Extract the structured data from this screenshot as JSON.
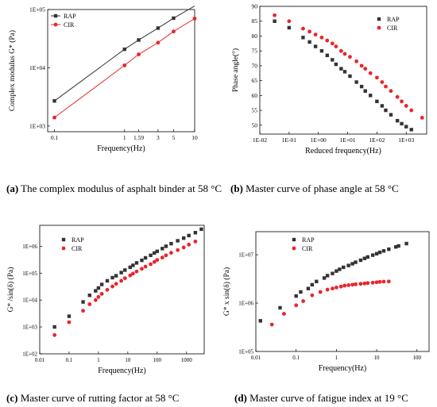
{
  "colors": {
    "rap": "#333333",
    "cir": "#e8262b"
  },
  "panels": [
    {
      "id": "a",
      "caption_letter": "(a)",
      "caption_text": " The complex modulus of asphalt binder at 58 °C",
      "chart_data": {
        "type": "line",
        "xscale": "log",
        "yscale": "log",
        "xlim": [
          0.08,
          10
        ],
        "ylim": [
          800,
          100000
        ],
        "xticks": [
          0.1,
          1,
          1.59,
          3,
          5,
          10
        ],
        "xtick_labels": [
          "0.1",
          "1",
          "1.59",
          "3",
          "5",
          "10"
        ],
        "yticks": [
          1000,
          10000,
          100000
        ],
        "ytick_labels": [
          "1E+03",
          "1E+04",
          "1E+05"
        ],
        "xlabel": "Frequency(Hz)",
        "ylabel": "Complex modulus G* (Pa)",
        "legend": "top-left",
        "series": [
          {
            "name": "RAP",
            "marker": "square",
            "line": true,
            "x": [
              0.1,
              1,
              1.59,
              3,
              5,
              10
            ],
            "y": [
              2700,
              20800,
              30000,
              48000,
              71000,
              115000
            ]
          },
          {
            "name": "CIR",
            "marker": "circle",
            "line": true,
            "x": [
              0.1,
              1,
              1.59,
              3,
              5,
              10
            ],
            "y": [
              1400,
              11000,
              17000,
              27000,
              42000,
              70000
            ]
          }
        ]
      }
    },
    {
      "id": "b",
      "caption_letter": "(b)",
      "caption_text": " Master curve of phase angle at 58 °C",
      "chart_data": {
        "type": "scatter",
        "xscale": "log",
        "yscale": "linear",
        "xlim": [
          0.01,
          5000
        ],
        "ylim": [
          47,
          90
        ],
        "xticks": [
          0.01,
          0.1,
          1,
          10,
          100,
          1000
        ],
        "xtick_labels": [
          "1E-02",
          "1E-01",
          "1E+00",
          "1E+01",
          "1E+02",
          "1E+03"
        ],
        "yticks": [
          50,
          55,
          60,
          65,
          70,
          75,
          80,
          85,
          90
        ],
        "ytick_labels": [
          "50",
          "55",
          "60",
          "65",
          "70",
          "75",
          "80",
          "85",
          "90"
        ],
        "xlabel": "Reduced frequency(Hz)",
        "ylabel": "Phase angle(°)",
        "legend": "top-right",
        "series": [
          {
            "name": "RAP",
            "marker": "square",
            "x": [
              0.032,
              0.1,
              0.3,
              0.5,
              0.8,
              1.3,
              2,
              3,
              4,
              6,
              8,
              12,
              20,
              30,
              40,
              60,
              100,
              150,
              200,
              300,
              500,
              700,
              1000,
              1500,
              3500
            ],
            "y": [
              85,
              82.8,
              79.5,
              78,
              76.5,
              75,
              73.5,
              72,
              70.5,
              69,
              68,
              66.5,
              64.5,
              63,
              61.5,
              60,
              58,
              56.5,
              55,
              53.5,
              51.5,
              50.5,
              49.5,
              48.5,
              46.5
            ]
          },
          {
            "name": "CIR",
            "marker": "circle",
            "x": [
              0.032,
              0.1,
              0.3,
              0.5,
              0.8,
              1.3,
              2,
              3,
              4,
              6,
              8,
              12,
              20,
              30,
              40,
              60,
              100,
              150,
              200,
              300,
              500,
              700,
              1000,
              1500,
              3500
            ],
            "y": [
              87,
              85,
              82.5,
              81.5,
              80.5,
              79.5,
              78.5,
              77.5,
              76.5,
              75,
              74,
              73,
              71.5,
              70,
              69,
              67.5,
              66,
              64.5,
              63,
              61.5,
              59.5,
              58,
              56.5,
              55,
              52.5
            ]
          }
        ]
      }
    },
    {
      "id": "c",
      "caption_letter": "(c)",
      "caption_text": " Master curve of rutting factor at 58 °C",
      "chart_data": {
        "type": "scatter",
        "xscale": "log",
        "yscale": "log",
        "xlim": [
          0.01,
          4000
        ],
        "ylim": [
          100,
          6000000
        ],
        "xticks": [
          0.01,
          0.1,
          1,
          10,
          100,
          1000
        ],
        "xtick_labels": [
          "0.01",
          "0.1",
          "1",
          "10",
          "100",
          "1000"
        ],
        "yticks": [
          100,
          1000,
          10000,
          100000,
          1000000
        ],
        "ytick_labels": [
          "1E+02",
          "1E+03",
          "1E+04",
          "1E+05",
          "1E+06"
        ],
        "xlabel": "Frequency(Hz)",
        "ylabel": "G* /sin(δ) (Pa)",
        "legend": "top-left",
        "series": [
          {
            "name": "RAP",
            "marker": "square",
            "x": [
              0.032,
              0.1,
              0.3,
              0.5,
              0.8,
              1,
              1.3,
              2,
              3,
              4,
              6,
              8,
              12,
              15,
              20,
              30,
              40,
              60,
              80,
              100,
              150,
              200,
              300,
              500,
              800,
              1200,
              2000,
              3200
            ],
            "y": [
              1000,
              2500,
              8500,
              15000,
              22000,
              28000,
              38000,
              52000,
              68000,
              80000,
              105000,
              130000,
              165000,
              195000,
              240000,
              300000,
              370000,
              460000,
              560000,
              650000,
              820000,
              1000000,
              1250000,
              1600000,
              2000000,
              2500000,
              3200000,
              4300000
            ]
          },
          {
            "name": "CIR",
            "marker": "circle",
            "x": [
              0.032,
              0.1,
              0.3,
              0.5,
              0.8,
              1,
              1.3,
              2,
              3,
              4,
              6,
              8,
              12,
              15,
              20,
              30,
              40,
              60,
              80,
              100,
              150,
              200,
              300,
              500,
              800,
              1200,
              2000
            ],
            "y": [
              500,
              1500,
              4000,
              7000,
              10000,
              13000,
              17000,
              24000,
              32000,
              40000,
              52000,
              65000,
              82000,
              96000,
              115000,
              145000,
              175000,
              215000,
              260000,
              310000,
              380000,
              460000,
              570000,
              720000,
              900000,
              1150000,
              1500000
            ]
          }
        ]
      }
    },
    {
      "id": "d",
      "caption_letter": "(d)",
      "caption_text": " Master curve of fatigue index at 19 °C",
      "chart_data": {
        "type": "scatter",
        "xscale": "log",
        "yscale": "log",
        "xlim": [
          0.01,
          200
        ],
        "ylim": [
          100000,
          30000000
        ],
        "xticks": [
          0.01,
          0.1,
          1,
          10,
          100
        ],
        "xtick_labels": [
          "0.01",
          "0.1",
          "1",
          "10",
          "100"
        ],
        "yticks": [
          100000,
          1000000,
          10000000
        ],
        "ytick_labels": [
          "1E+05",
          "1E+06",
          "1E+07"
        ],
        "xlabel": "Frequency(Hz)",
        "ylabel": "G* x sin(δ) (Pa)",
        "legend": "top-left",
        "series": [
          {
            "name": "RAP",
            "marker": "square",
            "x": [
              0.013,
              0.04,
              0.1,
              0.13,
              0.2,
              0.25,
              0.32,
              0.5,
              0.6,
              0.8,
              1,
              1.2,
              1.5,
              2,
              2.5,
              3,
              4,
              5,
              6,
              8,
              10,
              12,
              15,
              20,
              30,
              35,
              55
            ],
            "y": [
              430000,
              800000,
              1400000,
              1700000,
              2000000,
              2400000,
              2800000,
              3300000,
              3700000,
              4100000,
              4600000,
              5000000,
              5500000,
              6000000,
              6500000,
              7000000,
              7700000,
              8400000,
              9000000,
              9800000,
              10500000,
              11200000,
              12000000,
              13000000,
              14500000,
              15200000,
              17000000
            ]
          },
          {
            "name": "CIR",
            "marker": "circle",
            "x": [
              0.025,
              0.05,
              0.1,
              0.15,
              0.25,
              0.4,
              0.6,
              0.8,
              1,
              1.3,
              1.6,
              2,
              2.5,
              3,
              4,
              5,
              6,
              8,
              10,
              12,
              15,
              20
            ],
            "y": [
              360000,
              600000,
              900000,
              1100000,
              1450000,
              1700000,
              1900000,
              2000000,
              2100000,
              2200000,
              2300000,
              2350000,
              2400000,
              2450000,
              2500000,
              2550000,
              2600000,
              2650000,
              2700000,
              2750000,
              2780000,
              2800000
            ]
          }
        ]
      }
    }
  ]
}
